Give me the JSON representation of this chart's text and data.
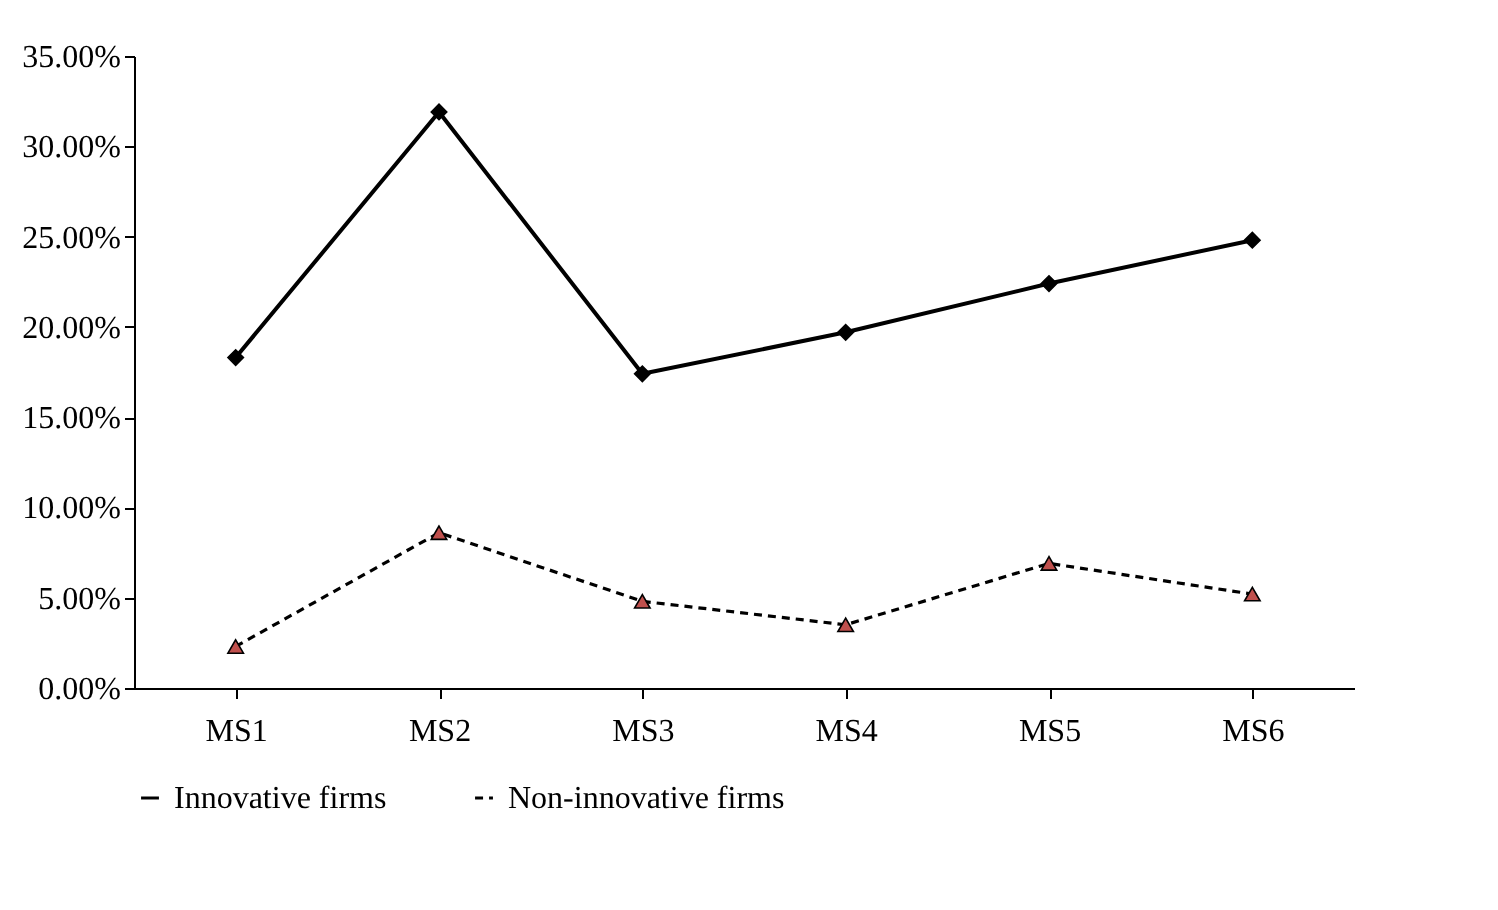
{
  "chart_data": {
    "type": "line",
    "categories": [
      "MS1",
      "MS2",
      "MS3",
      "MS4",
      "MS5",
      "MS6"
    ],
    "series": [
      {
        "name": "Innovative firms",
        "color": "#000000",
        "marker": "diamond",
        "line_style": "solid",
        "values": [
          18.3,
          31.9,
          17.4,
          19.7,
          22.4,
          24.8
        ]
      },
      {
        "name": "Non-innovative firms",
        "color": "#c0504d",
        "marker": "triangle",
        "line_style": "dashed",
        "values": [
          2.3,
          8.6,
          4.8,
          3.5,
          6.9,
          5.2
        ]
      }
    ],
    "ylim": [
      0,
      35
    ],
    "yticks": [
      {
        "value": 0,
        "label": "0.00%"
      },
      {
        "value": 5,
        "label": "5.00%"
      },
      {
        "value": 10,
        "label": "10.00%"
      },
      {
        "value": 15,
        "label": "15.00%"
      },
      {
        "value": 20,
        "label": "20.00%"
      },
      {
        "value": 25,
        "label": "25.00%"
      },
      {
        "value": 30,
        "label": "30.00%"
      },
      {
        "value": 35,
        "label": "35.00%"
      }
    ],
    "grid": false,
    "legend": "bottom"
  }
}
